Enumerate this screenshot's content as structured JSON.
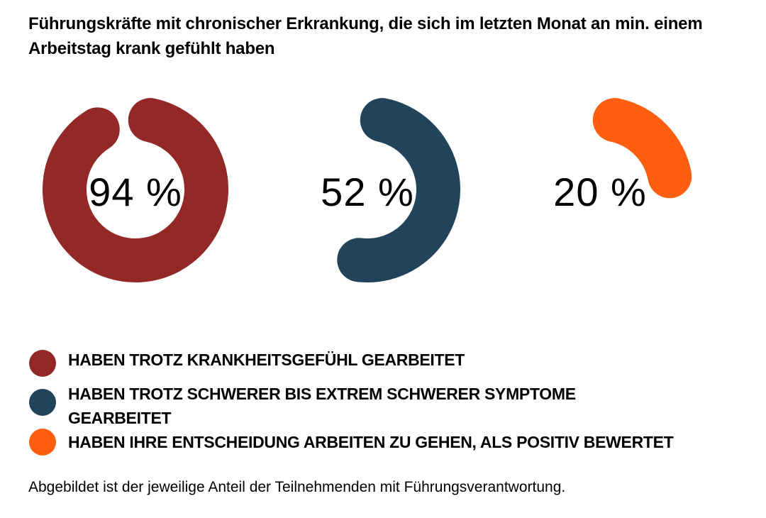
{
  "title": "Führungskräfte mit chronischer Erkrankung, die sich im letzten Monat an min. einem Arbeitstag krank gefühlt haben",
  "charts": [
    {
      "label": "94 %",
      "value": 94,
      "color": "#922927"
    },
    {
      "label": "52 %",
      "value": 52,
      "color": "#21445b"
    },
    {
      "label": "20 %",
      "value": 20,
      "color": "#fd5e0f"
    }
  ],
  "legend": [
    {
      "label": "HABEN TROTZ KRANKHEITSGEFÜHL GEARBEITET",
      "color": "#922927"
    },
    {
      "label": "HABEN TROTZ SCHWERER BIS EXTREM SCHWERER SYMPTOME GEARBEITET",
      "color": "#21445b"
    },
    {
      "label": "HABEN IHRE ENTSCHEIDUNG ARBEITEN ZU GEHEN, ALS POSITIV BEWERTET",
      "color": "#fd5e0f"
    }
  ],
  "note": "Abgebildet ist der jeweilige Anteil der Teilnehmenden mit Führungsverantwortung.",
  "chart_data": {
    "type": "pie",
    "title": "Führungskräfte mit chronischer Erkrankung, die sich im letzten Monat an min. einem Arbeitstag krank gefühlt haben",
    "categories": [
      "HABEN TROTZ KRANKHEITSGEFÜHL GEARBEITET",
      "HABEN TROTZ SCHWERER BIS EXTREM SCHWERER SYMPTOME GEARBEITET",
      "HABEN IHRE ENTSCHEIDUNG ARBEITEN ZU GEHEN, ALS POSITIV BEWERTET"
    ],
    "values": [
      94,
      52,
      20
    ],
    "unit": "%",
    "colors": [
      "#922927",
      "#21445b",
      "#fd5e0f"
    ],
    "style": "radial progress donuts",
    "legend_position": "bottom",
    "note": "Abgebildet ist der jeweilige Anteil der Teilnehmenden mit Führungsverantwortung."
  }
}
